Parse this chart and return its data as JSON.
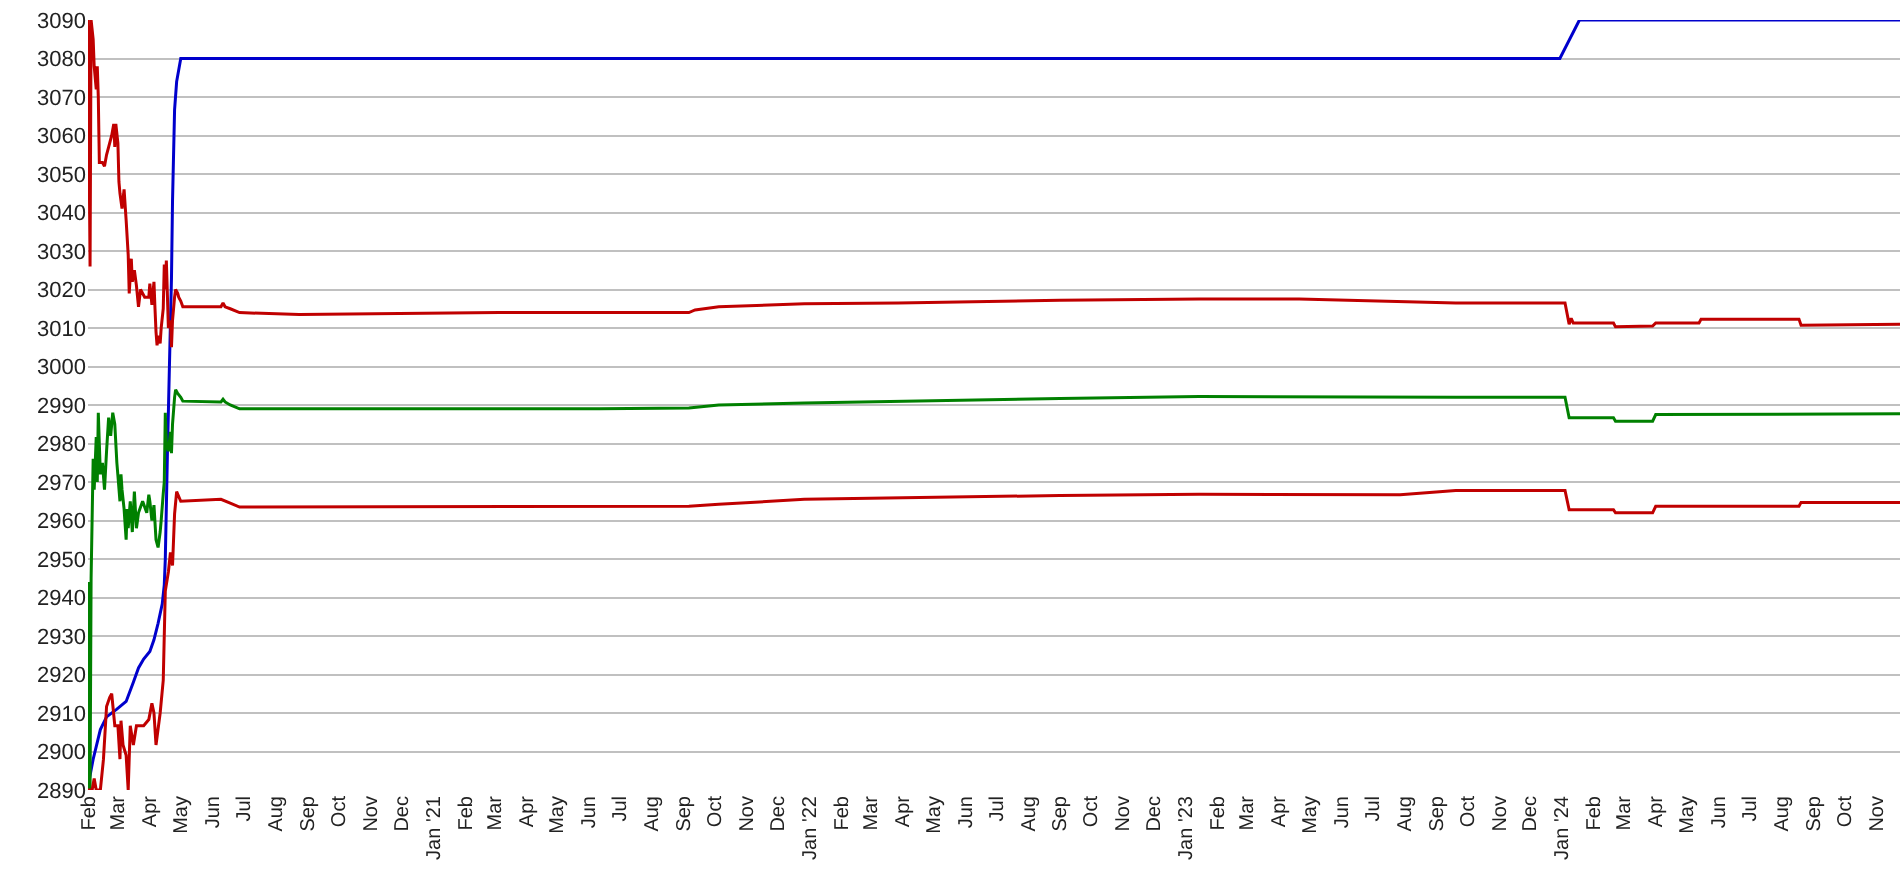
{
  "chart_data": {
    "type": "line",
    "xlim": [
      "2020-02-01",
      "2024-11-24"
    ],
    "ylim": [
      2890,
      3090
    ],
    "yticks": [
      2890,
      2900,
      2910,
      2920,
      2930,
      2940,
      2950,
      2960,
      2970,
      2980,
      2990,
      3000,
      3010,
      3020,
      3030,
      3040,
      3050,
      3060,
      3070,
      3080,
      3090
    ],
    "xticks": [
      {
        "value": "2020-02-01",
        "label": "Feb"
      },
      {
        "value": "2020-03-01",
        "label": "Mar"
      },
      {
        "value": "2020-04-01",
        "label": "Apr"
      },
      {
        "value": "2020-05-01",
        "label": "May"
      },
      {
        "value": "2020-06-01",
        "label": "Jun"
      },
      {
        "value": "2020-07-01",
        "label": "Jul"
      },
      {
        "value": "2020-08-01",
        "label": "Aug"
      },
      {
        "value": "2020-09-01",
        "label": "Sep"
      },
      {
        "value": "2020-10-01",
        "label": "Oct"
      },
      {
        "value": "2020-11-01",
        "label": "Nov"
      },
      {
        "value": "2020-12-01",
        "label": "Dec"
      },
      {
        "value": "2021-01-01",
        "label": "Jan '21"
      },
      {
        "value": "2021-02-01",
        "label": "Feb"
      },
      {
        "value": "2021-03-01",
        "label": "Mar"
      },
      {
        "value": "2021-04-01",
        "label": "Apr"
      },
      {
        "value": "2021-05-01",
        "label": "May"
      },
      {
        "value": "2021-06-01",
        "label": "Jun"
      },
      {
        "value": "2021-07-01",
        "label": "Jul"
      },
      {
        "value": "2021-08-01",
        "label": "Aug"
      },
      {
        "value": "2021-09-01",
        "label": "Sep"
      },
      {
        "value": "2021-10-01",
        "label": "Oct"
      },
      {
        "value": "2021-11-01",
        "label": "Nov"
      },
      {
        "value": "2021-12-01",
        "label": "Dec"
      },
      {
        "value": "2022-01-01",
        "label": "Jan '22"
      },
      {
        "value": "2022-02-01",
        "label": "Feb"
      },
      {
        "value": "2022-03-01",
        "label": "Mar"
      },
      {
        "value": "2022-04-01",
        "label": "Apr"
      },
      {
        "value": "2022-05-01",
        "label": "May"
      },
      {
        "value": "2022-06-01",
        "label": "Jun"
      },
      {
        "value": "2022-07-01",
        "label": "Jul"
      },
      {
        "value": "2022-08-01",
        "label": "Aug"
      },
      {
        "value": "2022-09-01",
        "label": "Sep"
      },
      {
        "value": "2022-10-01",
        "label": "Oct"
      },
      {
        "value": "2022-11-01",
        "label": "Nov"
      },
      {
        "value": "2022-12-01",
        "label": "Dec"
      },
      {
        "value": "2023-01-01",
        "label": "Jan '23"
      },
      {
        "value": "2023-02-01",
        "label": "Feb"
      },
      {
        "value": "2023-03-01",
        "label": "Mar"
      },
      {
        "value": "2023-04-01",
        "label": "Apr"
      },
      {
        "value": "2023-05-01",
        "label": "May"
      },
      {
        "value": "2023-06-01",
        "label": "Jun"
      },
      {
        "value": "2023-07-01",
        "label": "Jul"
      },
      {
        "value": "2023-08-01",
        "label": "Aug"
      },
      {
        "value": "2023-09-01",
        "label": "Sep"
      },
      {
        "value": "2023-10-01",
        "label": "Oct"
      },
      {
        "value": "2023-11-01",
        "label": "Nov"
      },
      {
        "value": "2023-12-01",
        "label": "Dec"
      },
      {
        "value": "2024-01-01",
        "label": "Jan '24"
      },
      {
        "value": "2024-02-01",
        "label": "Feb"
      },
      {
        "value": "2024-03-01",
        "label": "Mar"
      },
      {
        "value": "2024-04-01",
        "label": "Apr"
      },
      {
        "value": "2024-05-01",
        "label": "May"
      },
      {
        "value": "2024-06-01",
        "label": "Jun"
      },
      {
        "value": "2024-07-01",
        "label": "Jul"
      },
      {
        "value": "2024-08-01",
        "label": "Aug"
      },
      {
        "value": "2024-09-01",
        "label": "Sep"
      },
      {
        "value": "2024-10-01",
        "label": "Oct"
      },
      {
        "value": "2024-11-01",
        "label": "Nov"
      }
    ],
    "grid": "y",
    "series": [
      {
        "color": "#0000cc",
        "x": [
          "2020-02-01",
          "2020-02-06",
          "2020-02-13",
          "2020-02-19",
          "2020-02-29",
          "2020-03-09",
          "2020-03-16",
          "2020-03-21",
          "2020-03-26",
          "2020-04-01",
          "2020-04-05",
          "2020-04-09",
          "2020-04-13",
          "2020-04-15",
          "2020-04-16",
          "2020-04-18",
          "2020-04-20",
          "2020-04-22",
          "2020-04-23",
          "2020-04-25",
          "2020-04-27",
          "2020-05-01",
          "2023-12-30",
          "2024-01-18",
          "2024-11-24"
        ],
        "values": [
          2891,
          2898,
          2905.7,
          2909,
          2911,
          2913,
          2918,
          2921.7,
          2924,
          2926,
          2929,
          2933.3,
          2938.3,
          2943.3,
          2950,
          2976.7,
          3000,
          3023,
          3043,
          3066.7,
          3074,
          3080,
          3080,
          3090,
          3090
        ]
      },
      {
        "color": "#c00000",
        "x": [
          "2020-02-01",
          "2020-02-02",
          "2020-02-03",
          "2020-02-04",
          "2020-02-06",
          "2020-02-07",
          "2020-02-09",
          "2020-02-10",
          "2020-02-11",
          "2020-02-12",
          "2020-02-15",
          "2020-02-17",
          "2020-02-19",
          "2020-02-21",
          "2020-02-24",
          "2020-02-26",
          "2020-02-27",
          "2020-02-28",
          "2020-03-01",
          "2020-03-02",
          "2020-03-03",
          "2020-03-05",
          "2020-03-07",
          "2020-03-09",
          "2020-03-11",
          "2020-03-12",
          "2020-03-14",
          "2020-03-15",
          "2020-03-17",
          "2020-03-19",
          "2020-03-21",
          "2020-03-23",
          "2020-03-27",
          "2020-03-31",
          "2020-04-01",
          "2020-04-03",
          "2020-04-05",
          "2020-04-06",
          "2020-04-07",
          "2020-04-08",
          "2020-04-09",
          "2020-04-11",
          "2020-04-12",
          "2020-04-14",
          "2020-04-15",
          "2020-04-16",
          "2020-04-17",
          "2020-04-19",
          "2020-04-21",
          "2020-04-22",
          "2020-04-23",
          "2020-04-25",
          "2020-04-26",
          "2020-04-28",
          "2020-04-29",
          "2020-05-01",
          "2020-05-03",
          "2020-06-09",
          "2020-06-11",
          "2020-06-13",
          "2020-06-18",
          "2020-06-27",
          "2020-08-24",
          "2021-03-06",
          "2021-09-06",
          "2021-09-12",
          "2021-10-05",
          "2021-12-27",
          "2022-03-28",
          "2022-09-01",
          "2023-01-14",
          "2023-04-21",
          "2023-09-20",
          "2024-01-04",
          "2024-01-08",
          "2024-01-10",
          "2024-01-12",
          "2024-02-20",
          "2024-02-22",
          "2024-03-29",
          "2024-04-01",
          "2024-05-13",
          "2024-05-15",
          "2024-08-18",
          "2024-08-20",
          "2024-11-24"
        ],
        "values": [
          3090,
          3058,
          3026,
          3090,
          3085,
          3078,
          3072,
          3078,
          3070,
          3053,
          3053,
          3052,
          3055,
          3057,
          3060,
          3063,
          3057,
          3063,
          3058,
          3048,
          3045,
          3041,
          3046,
          3038,
          3029,
          3019,
          3028,
          3022,
          3025,
          3021,
          3015.5,
          3020,
          3018,
          3018,
          3021.5,
          3016,
          3022,
          3015,
          3009,
          3005.5,
          3008,
          3006,
          3010,
          3015,
          3026.5,
          3020,
          3027.5,
          3010,
          3012,
          3005,
          3012,
          3018,
          3020,
          3019,
          3018,
          3017,
          3015.5,
          3015.5,
          3016.5,
          3015.5,
          3015,
          3014,
          3013.5,
          3014,
          3014,
          3014.7,
          3015.5,
          3016.3,
          3016.5,
          3017.2,
          3017.5,
          3017.5,
          3016.5,
          3016.5,
          3011,
          3012.5,
          3011.3,
          3011.3,
          3010.3,
          3010.5,
          3011.3,
          3011.3,
          3012.3,
          3012.3,
          3010.7,
          3011
        ]
      },
      {
        "color": "#008000",
        "x": [
          "2020-02-01",
          "2020-02-02",
          "2020-02-03",
          "2020-02-04",
          "2020-02-06",
          "2020-02-07",
          "2020-02-09",
          "2020-02-10",
          "2020-02-11",
          "2020-02-13",
          "2020-02-15",
          "2020-02-17",
          "2020-02-19",
          "2020-02-21",
          "2020-02-23",
          "2020-02-25",
          "2020-02-27",
          "2020-02-29",
          "2020-03-01",
          "2020-03-03",
          "2020-03-04",
          "2020-03-05",
          "2020-03-07",
          "2020-03-09",
          "2020-03-10",
          "2020-03-11",
          "2020-03-13",
          "2020-03-15",
          "2020-03-17",
          "2020-03-19",
          "2020-03-21",
          "2020-03-25",
          "2020-03-29",
          "2020-03-31",
          "2020-04-01",
          "2020-04-03",
          "2020-04-05",
          "2020-04-07",
          "2020-04-09",
          "2020-04-11",
          "2020-04-12",
          "2020-04-14",
          "2020-04-15",
          "2020-04-16",
          "2020-04-17",
          "2020-04-19",
          "2020-04-21",
          "2020-04-22",
          "2020-04-23",
          "2020-04-25",
          "2020-04-26",
          "2020-04-28",
          "2020-05-01",
          "2020-05-03",
          "2020-06-09",
          "2020-06-11",
          "2020-06-13",
          "2020-06-18",
          "2020-06-27",
          "2021-06-11",
          "2021-09-06",
          "2021-10-05",
          "2021-12-27",
          "2022-09-01",
          "2023-01-14",
          "2023-09-20",
          "2024-01-04",
          "2024-01-08",
          "2024-02-20",
          "2024-02-22",
          "2024-03-29",
          "2024-04-01",
          "2024-11-24"
        ],
        "values": [
          2890,
          2944,
          2890,
          2945,
          2976,
          2968,
          2981.7,
          2970,
          2988,
          2972,
          2975,
          2968,
          2978,
          2986.7,
          2982,
          2988,
          2985,
          2975,
          2971.7,
          2965,
          2972,
          2968,
          2963,
          2955,
          2963,
          2958,
          2965,
          2957,
          2967.5,
          2958,
          2962,
          2965,
          2962,
          2966.7,
          2965,
          2960,
          2964,
          2955,
          2953,
          2957,
          2960,
          2967,
          2970,
          2988,
          2980,
          2978,
          2983,
          2977.5,
          2985,
          2992,
          2994,
          2993,
          2992,
          2991,
          2990.8,
          2991.5,
          2990.8,
          2990,
          2989,
          2989,
          2989.2,
          2990,
          2990.5,
          2991.7,
          2992.2,
          2992,
          2992,
          2986.7,
          2986.7,
          2985.8,
          2985.8,
          2987.5,
          2987.7
        ]
      },
      {
        "color": "#c00000",
        "x": [
          "2020-02-01",
          "2020-02-05",
          "2020-02-07",
          "2020-02-09",
          "2020-02-13",
          "2020-02-16",
          "2020-02-19",
          "2020-02-22",
          "2020-02-24",
          "2020-02-27",
          "2020-03-01",
          "2020-03-03",
          "2020-03-04",
          "2020-03-06",
          "2020-03-09",
          "2020-03-11",
          "2020-03-13",
          "2020-03-16",
          "2020-03-19",
          "2020-03-26",
          "2020-03-31",
          "2020-04-03",
          "2020-04-05",
          "2020-04-07",
          "2020-04-11",
          "2020-04-14",
          "2020-04-16",
          "2020-04-19",
          "2020-04-21",
          "2020-04-23",
          "2020-04-25",
          "2020-04-27",
          "2020-05-01",
          "2020-06-09",
          "2020-06-18",
          "2020-06-27",
          "2021-09-06",
          "2021-10-05",
          "2021-12-27",
          "2022-09-01",
          "2023-01-14",
          "2023-07-28",
          "2023-09-20",
          "2024-01-04",
          "2024-01-08",
          "2024-02-20",
          "2024-02-22",
          "2024-03-29",
          "2024-04-01",
          "2024-08-18",
          "2024-08-20",
          "2024-11-24"
        ],
        "values": [
          2890,
          2890,
          2893,
          2890,
          2890,
          2898,
          2911.7,
          2914,
          2915,
          2906.7,
          2906.7,
          2898,
          2908,
          2901.7,
          2899,
          2890,
          2906.7,
          2901.7,
          2906.7,
          2906.7,
          2908.3,
          2912.5,
          2910,
          2901.7,
          2910,
          2918.5,
          2941.7,
          2946.7,
          2951.7,
          2948.3,
          2961.7,
          2967.5,
          2965,
          2965.5,
          2964.5,
          2963.5,
          2963.7,
          2964.2,
          2965.5,
          2966.5,
          2966.8,
          2966.7,
          2967.8,
          2967.8,
          2962.8,
          2962.8,
          2962,
          2962,
          2963.7,
          2963.7,
          2964.7,
          2964.7
        ]
      }
    ]
  }
}
